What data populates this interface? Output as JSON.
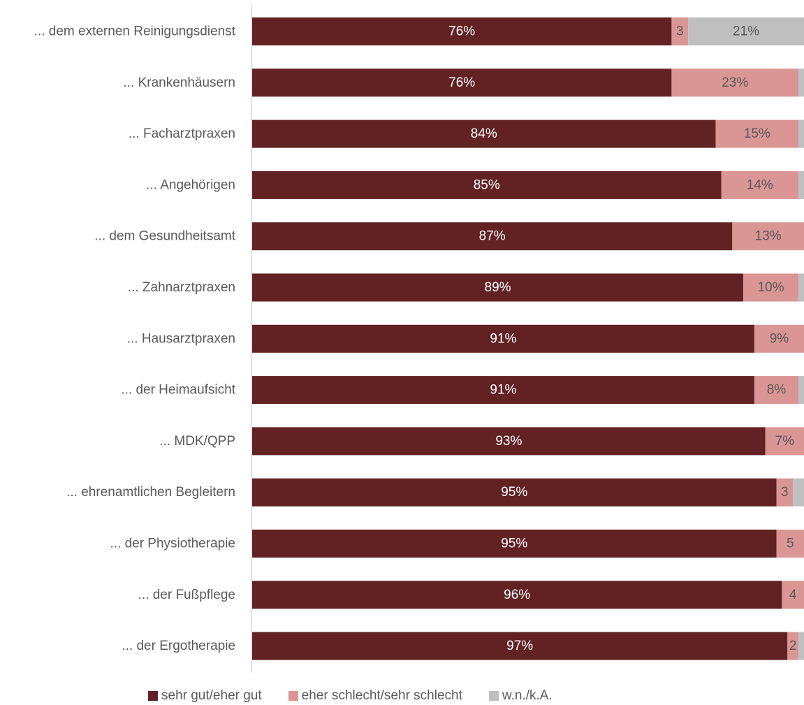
{
  "chart_data": {
    "type": "bar",
    "orientation": "horizontal",
    "stacked": true,
    "categories": [
      "... dem externen Reinigungsdienst",
      "... Krankenhäusern",
      "... Facharztpraxen",
      "... Angehörigen",
      "... dem Gesundheitsamt",
      "... Zahnarztpraxen",
      "... Hausarztpraxen",
      "... der Heimaufsicht",
      "... MDK/QPP",
      "... ehrenamtlichen Begleitern",
      "... der Physiotherapie",
      "... der Fußpflege",
      "... der Ergotherapie"
    ],
    "series": [
      {
        "name": "sehr gut/eher gut",
        "color": "#622223",
        "label_color": "#ffffff",
        "values": [
          76,
          76,
          84,
          85,
          87,
          89,
          91,
          91,
          93,
          95,
          95,
          96,
          97
        ],
        "labels": [
          "76%",
          "76%",
          "84%",
          "85%",
          "87%",
          "89%",
          "91%",
          "91%",
          "93%",
          "95%",
          "95%",
          "96%",
          "97%"
        ]
      },
      {
        "name": "eher schlecht/sehr schlecht",
        "color": "#d99694",
        "label_color": "#595959",
        "values": [
          3,
          23,
          15,
          14,
          13,
          10,
          9,
          8,
          7,
          3,
          5,
          4,
          2
        ],
        "labels": [
          "3",
          "23%",
          "15%",
          "14%",
          "13%",
          "10%",
          "9%",
          "8%",
          "7%",
          "3",
          "5",
          "4",
          "2"
        ]
      },
      {
        "name": "w.n./k.A.",
        "color": "#bfbfbf",
        "label_color": "#595959",
        "values": [
          21,
          1,
          1,
          1,
          0,
          2,
          0,
          1,
          0,
          2,
          0,
          0,
          1
        ],
        "labels": [
          "21%",
          "",
          "",
          "",
          "",
          "",
          "",
          "",
          "",
          "",
          "",
          "",
          ""
        ]
      }
    ],
    "xlim": [
      0,
      100
    ],
    "grid": false,
    "legend_position": "bottom"
  }
}
